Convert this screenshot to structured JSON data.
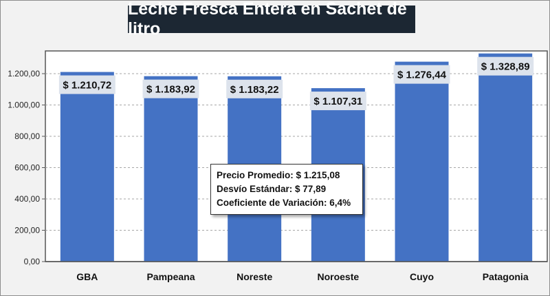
{
  "chart_data": {
    "type": "bar",
    "title": "Leche Fresca Entera en Sachet de litro",
    "categories": [
      "GBA",
      "Pampeana",
      "Noreste",
      "Noroeste",
      "Cuyo",
      "Patagonia"
    ],
    "values": [
      1210.72,
      1183.92,
      1183.22,
      1107.31,
      1276.44,
      1328.89
    ],
    "data_labels": [
      "$ 1.210,72",
      "$ 1.183,92",
      "$ 1.183,22",
      "$ 1.107,31",
      "$ 1.276,44",
      "$ 1.328,89"
    ],
    "yticks": [
      0,
      200,
      400,
      600,
      800,
      1000,
      1200
    ],
    "ytick_labels": [
      "0,00",
      "200,00",
      "400,00",
      "600,00",
      "800,00",
      "1.000,00",
      "1.200,00"
    ],
    "ylim": [
      0,
      1345
    ],
    "grid": true,
    "xlabel": "",
    "ylabel": "",
    "bar_color": "#4472c4",
    "label_bg_color": "#dde3ec",
    "annotation": [
      "Precio Promedio: $ 1.215,08",
      "Desvío Estándar: $ 77,89",
      "Coeficiente de Variación: 6,4%"
    ]
  }
}
